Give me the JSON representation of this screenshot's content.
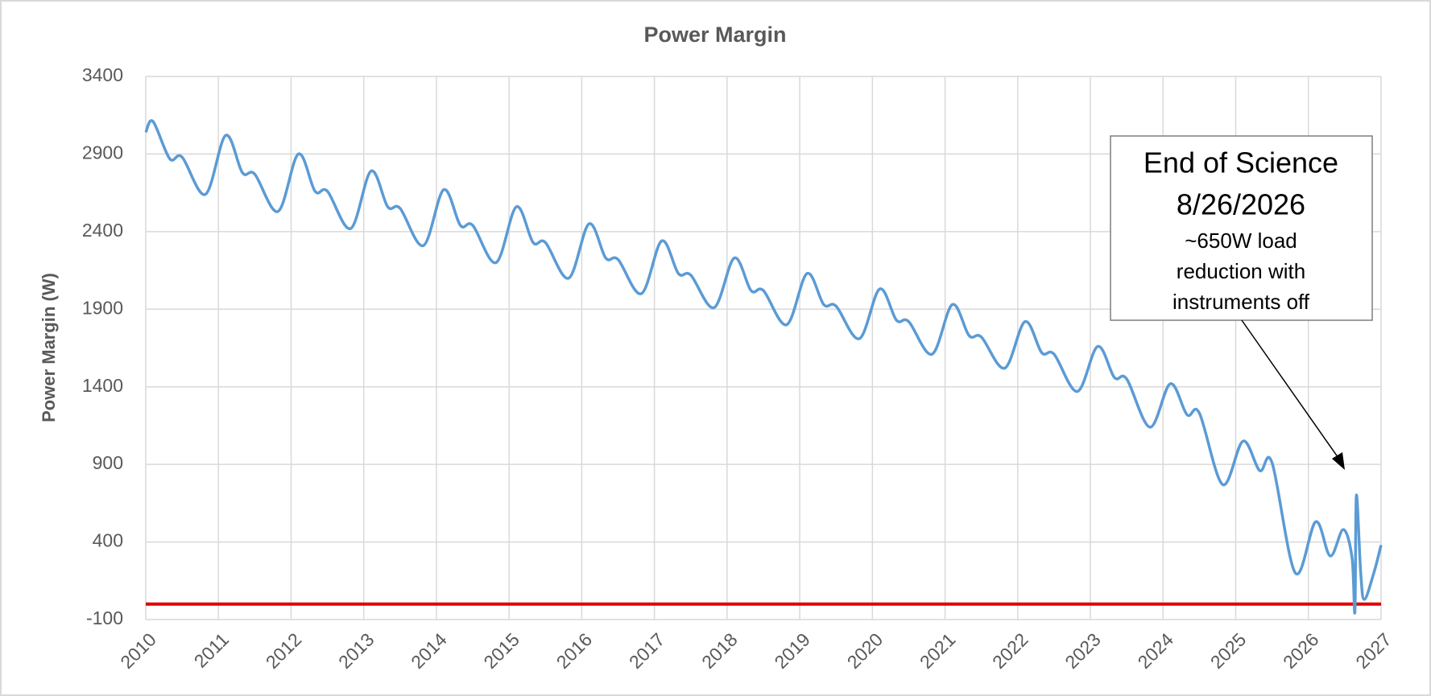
{
  "chart_data": {
    "type": "line",
    "title": "Power Margin",
    "y_label": "Power Margin (W)",
    "xlim": [
      2010,
      2027
    ],
    "xticks": [
      2010,
      2011,
      2012,
      2013,
      2014,
      2015,
      2016,
      2017,
      2018,
      2019,
      2020,
      2021,
      2022,
      2023,
      2024,
      2025,
      2026,
      2027
    ],
    "ylim": [
      -100,
      3400
    ],
    "yticks": [
      -100,
      400,
      900,
      1400,
      1900,
      2400,
      2900,
      3400
    ],
    "grid": true,
    "series": [
      {
        "name": "Power Margin",
        "color": "#5b9bd5",
        "x": [
          2010,
          2010.1,
          2010.33,
          2010.5,
          2010.82,
          2011.1,
          2011.33,
          2011.5,
          2011.82,
          2012.1,
          2012.33,
          2012.5,
          2012.82,
          2013.1,
          2013.33,
          2013.5,
          2013.82,
          2014.1,
          2014.33,
          2014.5,
          2014.82,
          2015.1,
          2015.33,
          2015.5,
          2015.82,
          2016.1,
          2016.33,
          2016.5,
          2016.82,
          2017.1,
          2017.33,
          2017.5,
          2017.82,
          2018.1,
          2018.33,
          2018.5,
          2018.82,
          2019.1,
          2019.33,
          2019.5,
          2019.82,
          2020.1,
          2020.33,
          2020.5,
          2020.82,
          2021.1,
          2021.33,
          2021.5,
          2021.82,
          2022.1,
          2022.33,
          2022.5,
          2022.82,
          2023.1,
          2023.33,
          2023.5,
          2023.82,
          2024.1,
          2024.33,
          2024.5,
          2024.82,
          2025.1,
          2025.33,
          2025.5,
          2025.82,
          2026.1,
          2026.3,
          2026.48,
          2026.6,
          2026.64,
          2026.66,
          2026.72,
          2026.77,
          2026.9,
          2027
        ],
        "values": [
          3040,
          3110,
          2870,
          2880,
          2640,
          3020,
          2780,
          2770,
          2530,
          2900,
          2660,
          2660,
          2420,
          2790,
          2560,
          2550,
          2310,
          2670,
          2440,
          2440,
          2200,
          2560,
          2330,
          2330,
          2100,
          2450,
          2230,
          2220,
          2000,
          2340,
          2130,
          2120,
          1910,
          2230,
          2020,
          2020,
          1800,
          2130,
          1930,
          1920,
          1710,
          2030,
          1830,
          1820,
          1610,
          1930,
          1730,
          1720,
          1520,
          1820,
          1620,
          1610,
          1370,
          1660,
          1460,
          1450,
          1140,
          1420,
          1220,
          1230,
          770,
          1050,
          860,
          910,
          200,
          530,
          310,
          480,
          300,
          -50,
          700,
          200,
          30,
          200,
          380
        ]
      }
    ],
    "reference_line": {
      "value": 0,
      "color": "#e00000"
    },
    "annotation": {
      "lines": [
        "End of Science",
        "8/26/2026",
        "~650W load",
        "reduction with",
        "instruments off"
      ]
    }
  }
}
